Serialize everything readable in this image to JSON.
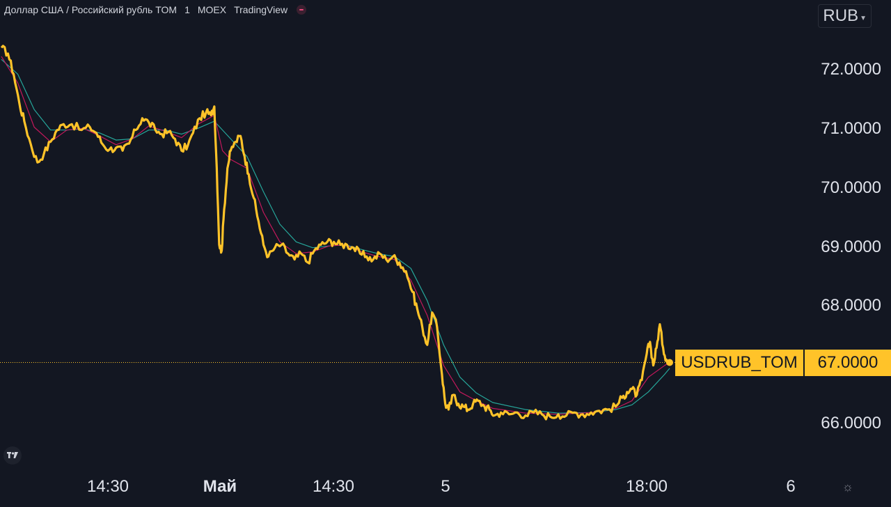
{
  "header": {
    "symbol_name": "Доллар США / Российский рубль TOM",
    "interval": "1",
    "exchange": "MOEX",
    "source": "TradingView"
  },
  "currency_selector": {
    "label": "RUB",
    "icon": "chevron-down-icon"
  },
  "colors": {
    "background": "#131722",
    "price_line": "#ffc329",
    "ma_fast": "#c2185b",
    "ma_slow": "#26a69a",
    "text": "#e0e3eb"
  },
  "chart_data": {
    "type": "line",
    "x_tick_labels": [
      "14:30",
      "Май",
      "14:30",
      "5",
      "18:00",
      "6"
    ],
    "y_tick_labels": [
      "72.0000",
      "71.0000",
      "70.0000",
      "69.0000",
      "68.0000",
      "66.0000"
    ],
    "ylim": [
      65.5,
      73.0
    ],
    "last_price": {
      "label": "USDRUB_TOM",
      "value": "67.0000"
    },
    "series": [
      {
        "values": [
          [
            0,
            72.35
          ],
          [
            0.8,
            72.25
          ],
          [
            1.5,
            71.9
          ],
          [
            2.2,
            71.4
          ],
          [
            2.8,
            71.1
          ],
          [
            3.6,
            70.7
          ],
          [
            4.4,
            70.4
          ],
          [
            5.2,
            70.55
          ],
          [
            6.0,
            70.75
          ],
          [
            6.8,
            70.95
          ],
          [
            7.6,
            71.05
          ],
          [
            8.6,
            71.05
          ],
          [
            9.8,
            70.95
          ],
          [
            10.8,
            71.0
          ],
          [
            11.6,
            70.9
          ],
          [
            12.4,
            70.7
          ],
          [
            13.2,
            70.62
          ],
          [
            14.0,
            70.65
          ],
          [
            14.8,
            70.6
          ],
          [
            15.6,
            70.72
          ],
          [
            16.4,
            70.95
          ],
          [
            17.2,
            71.15
          ],
          [
            18.0,
            71.08
          ],
          [
            18.8,
            70.95
          ],
          [
            19.6,
            70.88
          ],
          [
            20.4,
            70.92
          ],
          [
            21.2,
            70.8
          ],
          [
            22.0,
            70.6
          ],
          [
            22.8,
            70.7
          ],
          [
            23.4,
            70.9
          ],
          [
            24.2,
            71.15
          ],
          [
            25.0,
            71.25
          ],
          [
            25.6,
            71.2
          ],
          [
            26.0,
            71.35
          ],
          [
            26.3,
            70.3
          ],
          [
            26.6,
            69.0
          ],
          [
            26.9,
            68.9
          ],
          [
            27.2,
            69.6
          ],
          [
            27.6,
            70.3
          ],
          [
            28.0,
            70.6
          ],
          [
            28.6,
            70.75
          ],
          [
            29.2,
            70.85
          ],
          [
            29.7,
            70.5
          ],
          [
            30.2,
            70.2
          ],
          [
            30.8,
            69.8
          ],
          [
            31.4,
            69.4
          ],
          [
            32.0,
            69.0
          ],
          [
            32.6,
            68.8
          ],
          [
            33.4,
            68.95
          ],
          [
            34.2,
            69.0
          ],
          [
            35.0,
            68.85
          ],
          [
            35.8,
            68.75
          ],
          [
            36.6,
            68.85
          ],
          [
            37.4,
            68.7
          ],
          [
            38.2,
            68.9
          ],
          [
            39.0,
            69.0
          ],
          [
            39.8,
            69.05
          ],
          [
            40.6,
            69.05
          ],
          [
            41.4,
            69.0
          ],
          [
            42.2,
            69.0
          ],
          [
            43.0,
            68.95
          ],
          [
            43.8,
            68.85
          ],
          [
            44.6,
            68.8
          ],
          [
            45.4,
            68.75
          ],
          [
            46.2,
            68.85
          ],
          [
            47.0,
            68.75
          ],
          [
            47.8,
            68.8
          ],
          [
            48.6,
            68.7
          ],
          [
            49.4,
            68.55
          ],
          [
            50.2,
            68.2
          ],
          [
            50.8,
            67.9
          ],
          [
            51.4,
            67.6
          ],
          [
            52.0,
            67.3
          ],
          [
            52.6,
            67.85
          ],
          [
            53.2,
            67.6
          ],
          [
            53.8,
            66.8
          ],
          [
            54.2,
            66.3
          ],
          [
            54.6,
            66.2
          ],
          [
            55.2,
            66.45
          ],
          [
            55.8,
            66.3
          ],
          [
            56.4,
            66.25
          ],
          [
            57.0,
            66.2
          ],
          [
            57.6,
            66.3
          ],
          [
            58.2,
            66.35
          ],
          [
            59.0,
            66.25
          ],
          [
            59.6,
            66.2
          ],
          [
            60.2,
            66.1
          ],
          [
            61.0,
            66.15
          ],
          [
            62.0,
            66.12
          ],
          [
            63.0,
            66.15
          ],
          [
            64.0,
            66.1
          ],
          [
            65.0,
            66.15
          ],
          [
            66.0,
            66.12
          ],
          [
            67.0,
            66.08
          ],
          [
            68.0,
            66.12
          ],
          [
            69.0,
            66.1
          ],
          [
            70.0,
            66.15
          ],
          [
            71.0,
            66.12
          ],
          [
            72.0,
            66.15
          ],
          [
            73.0,
            66.18
          ],
          [
            74.0,
            66.2
          ],
          [
            75.0,
            66.25
          ],
          [
            75.8,
            66.4
          ],
          [
            76.4,
            66.5
          ],
          [
            77.0,
            66.55
          ],
          [
            77.6,
            66.45
          ],
          [
            78.2,
            66.7
          ],
          [
            78.8,
            67.15
          ],
          [
            79.2,
            67.35
          ],
          [
            79.6,
            66.95
          ],
          [
            80.0,
            67.25
          ],
          [
            80.4,
            67.65
          ],
          [
            80.8,
            67.25
          ],
          [
            81.2,
            67.05
          ],
          [
            81.6,
            67.0
          ]
        ]
      },
      {
        "values": [
          [
            0,
            72.2
          ],
          [
            2,
            71.75
          ],
          [
            4,
            71.0
          ],
          [
            6,
            70.75
          ],
          [
            8,
            70.95
          ],
          [
            10,
            70.98
          ],
          [
            12,
            70.85
          ],
          [
            14,
            70.7
          ],
          [
            16,
            70.8
          ],
          [
            18,
            71.02
          ],
          [
            20,
            70.93
          ],
          [
            22,
            70.82
          ],
          [
            24,
            71.05
          ],
          [
            26,
            71.2
          ],
          [
            27,
            70.6
          ],
          [
            28,
            70.45
          ],
          [
            30,
            70.3
          ],
          [
            32,
            69.55
          ],
          [
            34,
            69.05
          ],
          [
            36,
            68.85
          ],
          [
            38,
            68.88
          ],
          [
            40,
            68.98
          ],
          [
            42,
            69.0
          ],
          [
            44,
            68.88
          ],
          [
            46,
            68.8
          ],
          [
            48,
            68.75
          ],
          [
            50,
            68.4
          ],
          [
            52,
            67.8
          ],
          [
            54,
            66.95
          ],
          [
            56,
            66.5
          ],
          [
            58,
            66.35
          ],
          [
            60,
            66.22
          ],
          [
            64,
            66.14
          ],
          [
            68,
            66.12
          ],
          [
            72,
            66.15
          ],
          [
            75,
            66.22
          ],
          [
            77,
            66.35
          ],
          [
            79,
            66.75
          ],
          [
            81,
            66.95
          ],
          [
            81.6,
            67.0
          ]
        ]
      },
      {
        "values": [
          [
            0,
            72.15
          ],
          [
            2,
            71.9
          ],
          [
            4,
            71.3
          ],
          [
            6,
            70.95
          ],
          [
            8,
            70.95
          ],
          [
            10,
            70.97
          ],
          [
            12,
            70.9
          ],
          [
            14,
            70.78
          ],
          [
            16,
            70.8
          ],
          [
            18,
            70.95
          ],
          [
            20,
            70.95
          ],
          [
            22,
            70.88
          ],
          [
            24,
            70.98
          ],
          [
            26,
            71.1
          ],
          [
            28,
            70.8
          ],
          [
            30,
            70.5
          ],
          [
            32,
            69.9
          ],
          [
            34,
            69.35
          ],
          [
            36,
            69.05
          ],
          [
            38,
            68.95
          ],
          [
            40,
            68.98
          ],
          [
            42,
            69.0
          ],
          [
            44,
            68.92
          ],
          [
            46,
            68.85
          ],
          [
            48,
            68.8
          ],
          [
            50,
            68.6
          ],
          [
            52,
            68.05
          ],
          [
            54,
            67.3
          ],
          [
            56,
            66.75
          ],
          [
            58,
            66.48
          ],
          [
            60,
            66.32
          ],
          [
            64,
            66.2
          ],
          [
            68,
            66.14
          ],
          [
            72,
            66.15
          ],
          [
            75,
            66.2
          ],
          [
            77,
            66.28
          ],
          [
            79,
            66.5
          ],
          [
            81,
            66.8
          ],
          [
            81.6,
            66.9
          ]
        ]
      }
    ]
  }
}
